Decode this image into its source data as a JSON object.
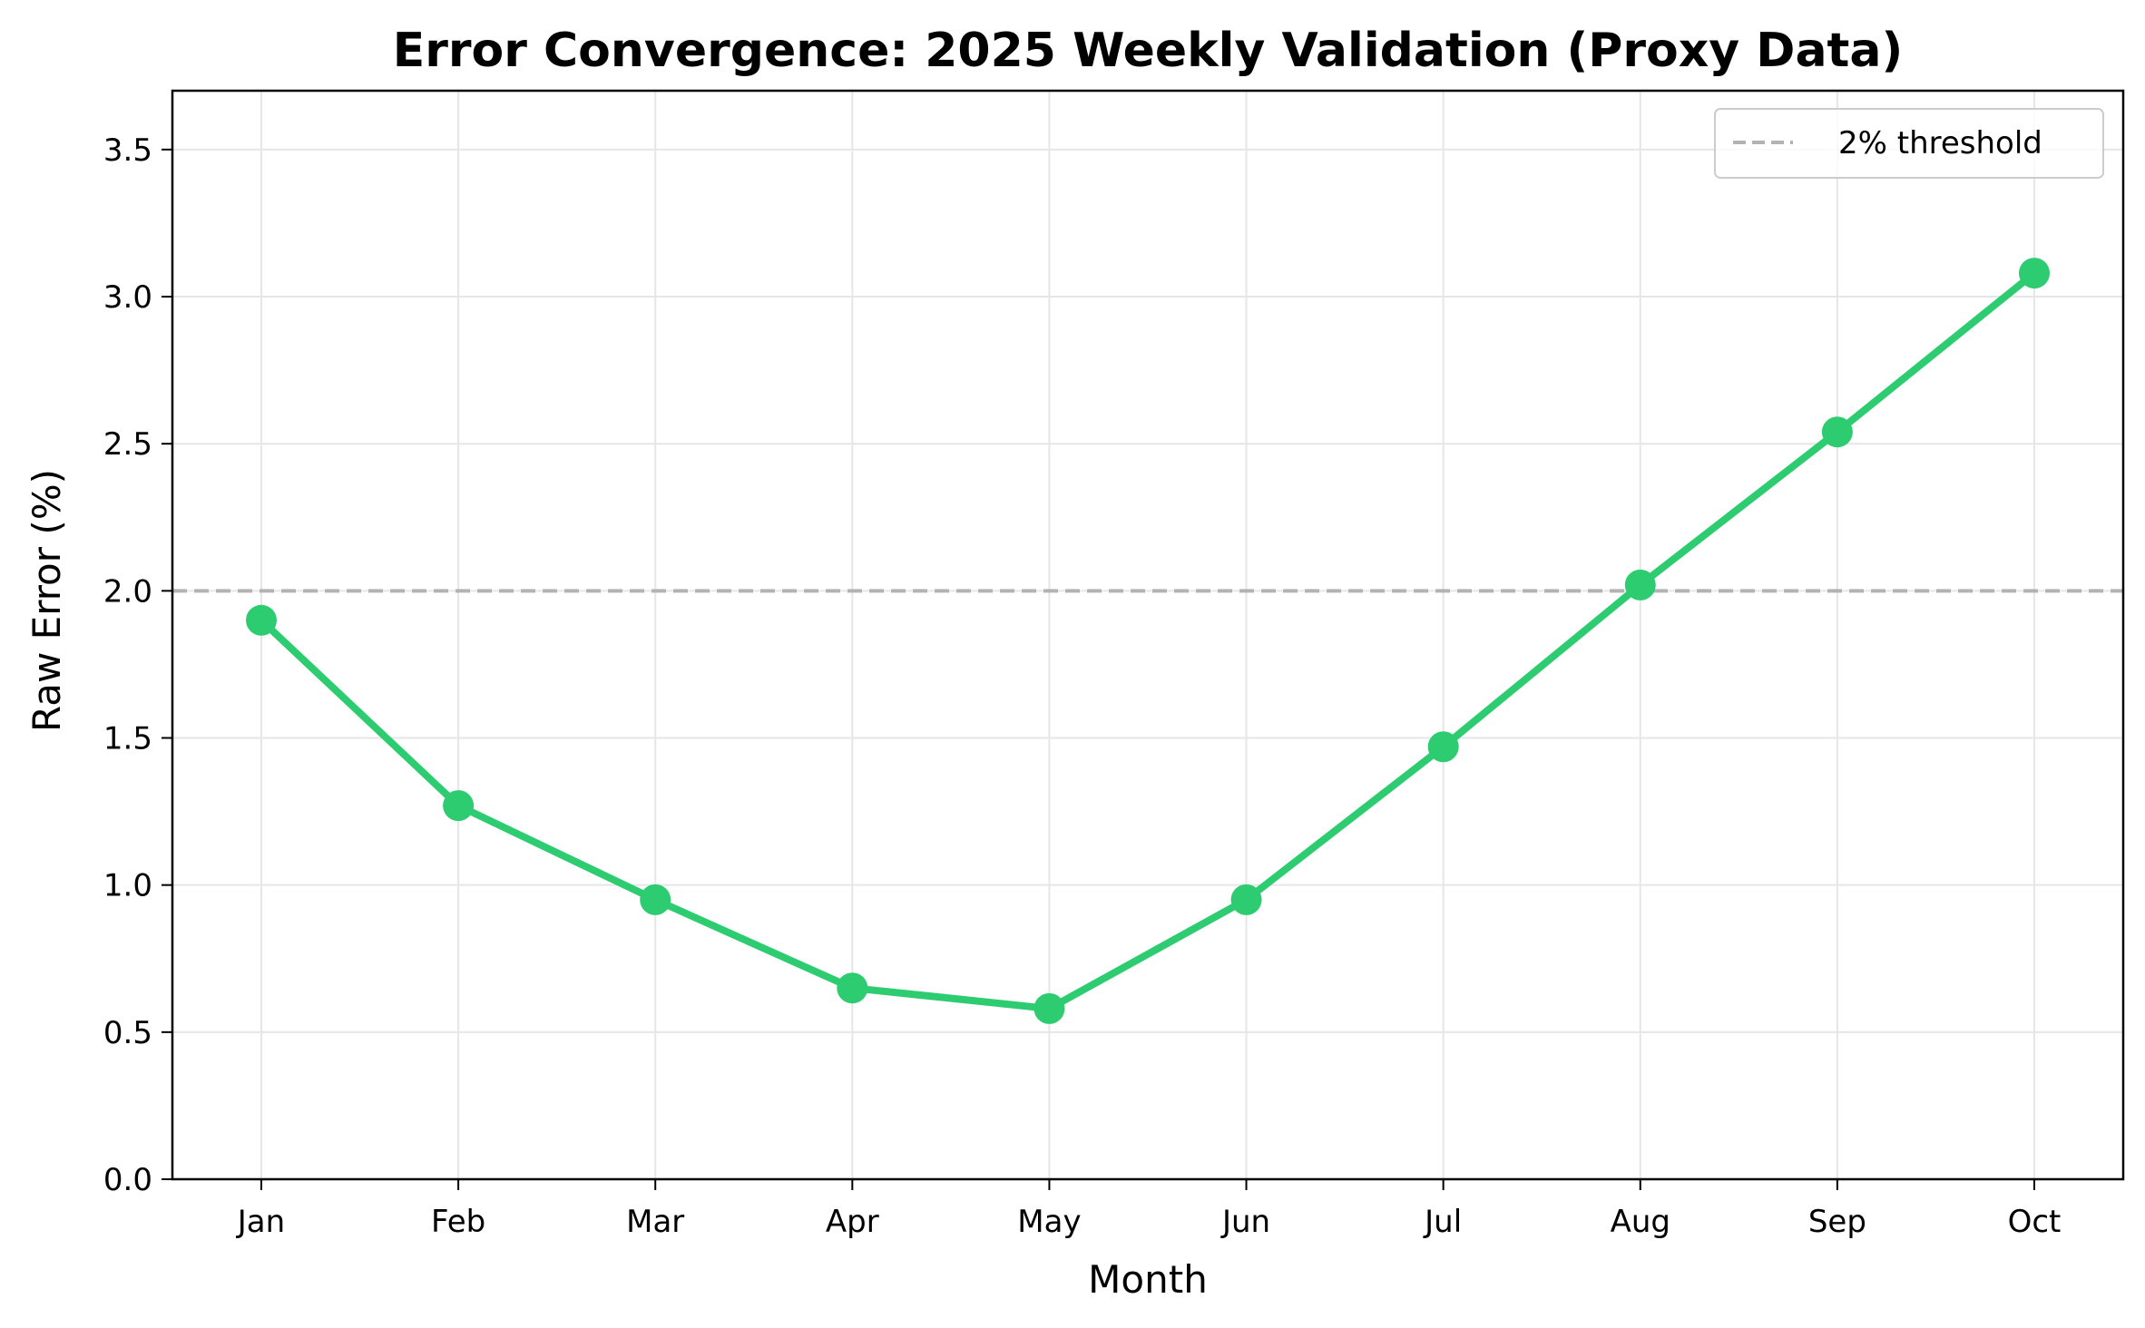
{
  "chart_data": {
    "type": "line",
    "title": "Error Convergence: 2025 Weekly Validation (Proxy Data)",
    "xlabel": "Month",
    "ylabel": "Raw Error (%)",
    "categories": [
      "Jan",
      "Feb",
      "Mar",
      "Apr",
      "May",
      "Jun",
      "Jul",
      "Aug",
      "Sep",
      "Oct"
    ],
    "series": [
      {
        "values": [
          1.9,
          1.27,
          0.95,
          0.65,
          0.58,
          0.95,
          1.47,
          2.02,
          2.54,
          3.08
        ],
        "color": "#2ecc71"
      }
    ],
    "threshold": {
      "name": "2% threshold",
      "value": 2.0,
      "color": "#b3b3b3",
      "style": "dashed"
    },
    "ylim": [
      0,
      3.7
    ],
    "yticks": [
      "0.0",
      "0.5",
      "1.0",
      "1.5",
      "2.0",
      "2.5",
      "3.0",
      "3.5"
    ],
    "grid": true,
    "legend_position": "top-right"
  }
}
